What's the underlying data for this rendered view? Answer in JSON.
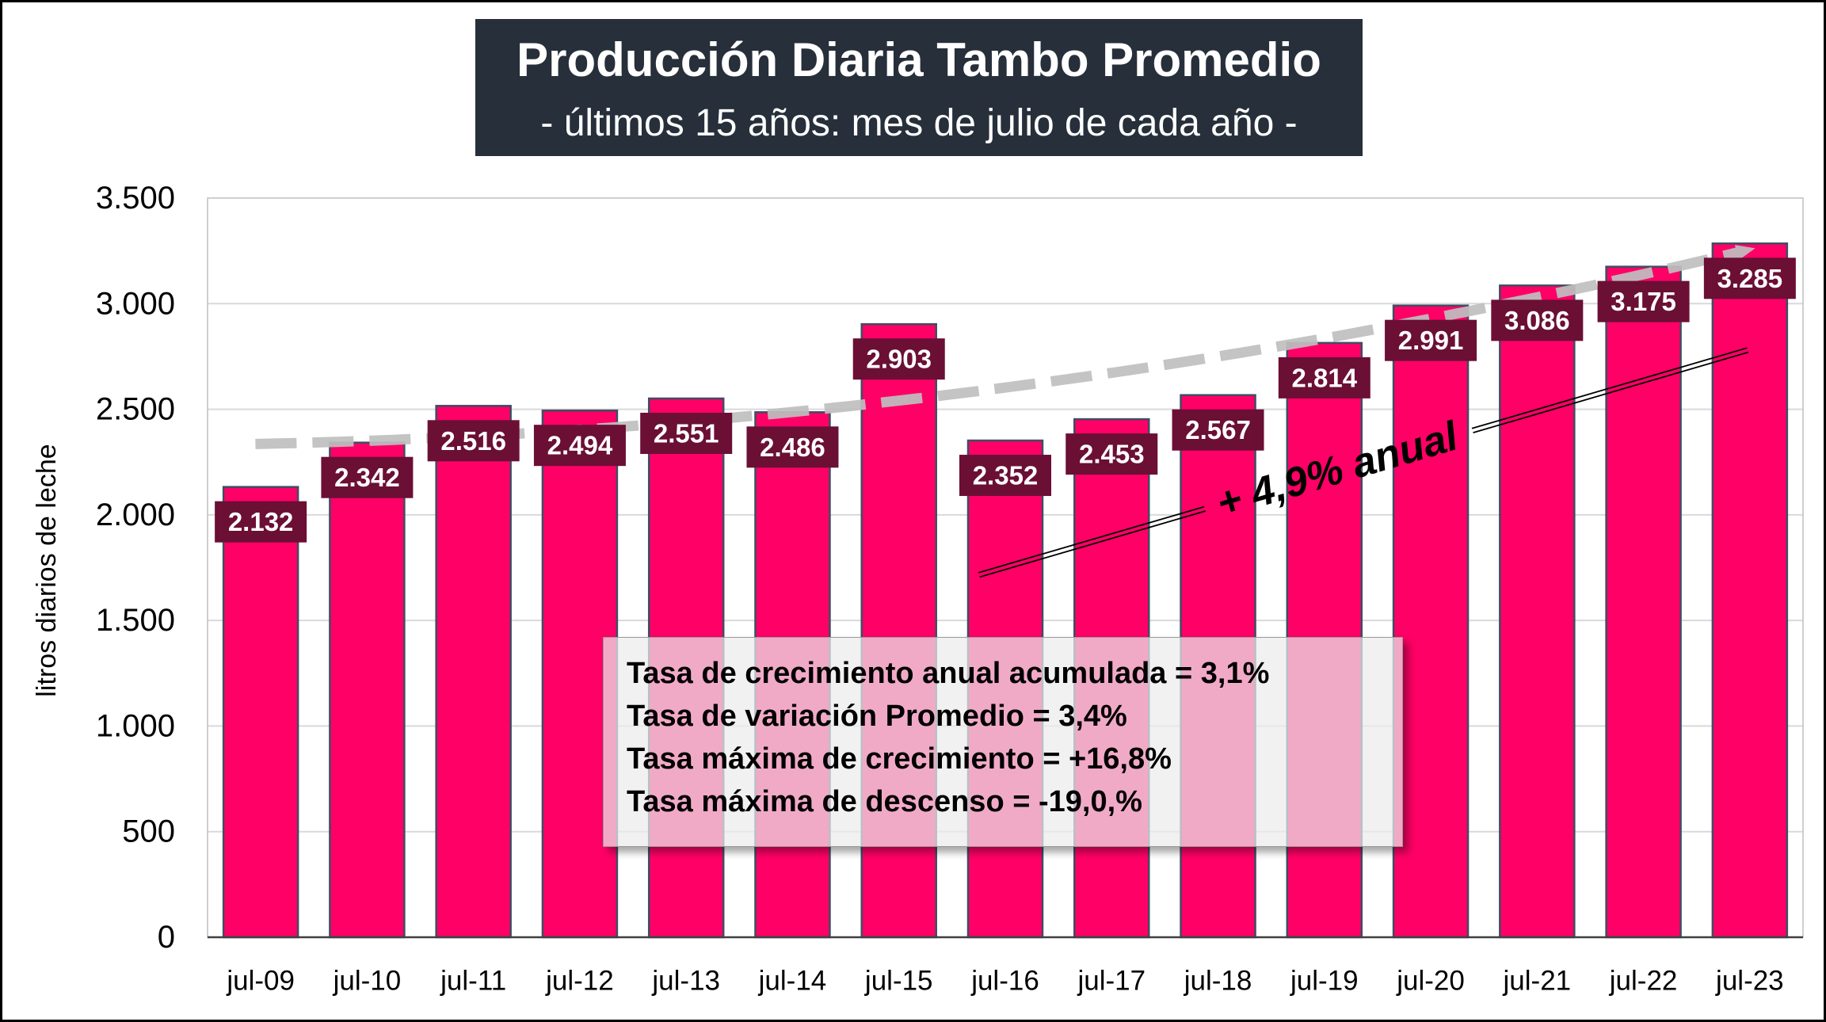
{
  "chart_data": {
    "type": "bar",
    "title": "Producción Diaria Tambo Promedio",
    "subtitle": "- últimos 15 años: mes de julio de cada año -",
    "xlabel": "",
    "ylabel": "litros diarios de leche",
    "categories": [
      "jul-09",
      "jul-10",
      "jul-11",
      "jul-12",
      "jul-13",
      "jul-14",
      "jul-15",
      "jul-16",
      "jul-17",
      "jul-18",
      "jul-19",
      "jul-20",
      "jul-21",
      "jul-22",
      "jul-23"
    ],
    "values": [
      2132,
      2342,
      2516,
      2494,
      2551,
      2486,
      2903,
      2352,
      2453,
      2567,
      2814,
      2991,
      3086,
      3175,
      3285
    ],
    "data_labels": [
      "2.132",
      "2.342",
      "2.516",
      "2.494",
      "2.551",
      "2.486",
      "2.903",
      "2.352",
      "2.453",
      "2.567",
      "2.814",
      "2.991",
      "3.086",
      "3.175",
      "3.285"
    ],
    "ylim": [
      0,
      3500
    ],
    "yticks": [
      0,
      500,
      1000,
      1500,
      2000,
      2500,
      3000,
      3500
    ],
    "ytick_labels": [
      "0",
      "500",
      "1.000",
      "1.500",
      "2.000",
      "2.500",
      "3.000",
      "3.500"
    ],
    "grid": true,
    "trendline": true,
    "annotations": {
      "growth_label": "+ 4,9% anual",
      "stats": [
        "Tasa de crecimiento anual acumulada = 3,1%",
        "Tasa de variación Promedio = 3,4%",
        "Tasa máxima de crecimiento = +16,8%",
        "Tasa máxima de descenso = -19,0,%"
      ]
    }
  },
  "colors": {
    "bars": "#FF0066",
    "bar_outline": "#3F4D63",
    "data_label_box": "#6B0F35",
    "title_box": "#262F3A",
    "trendline": "#BFBFBF"
  }
}
